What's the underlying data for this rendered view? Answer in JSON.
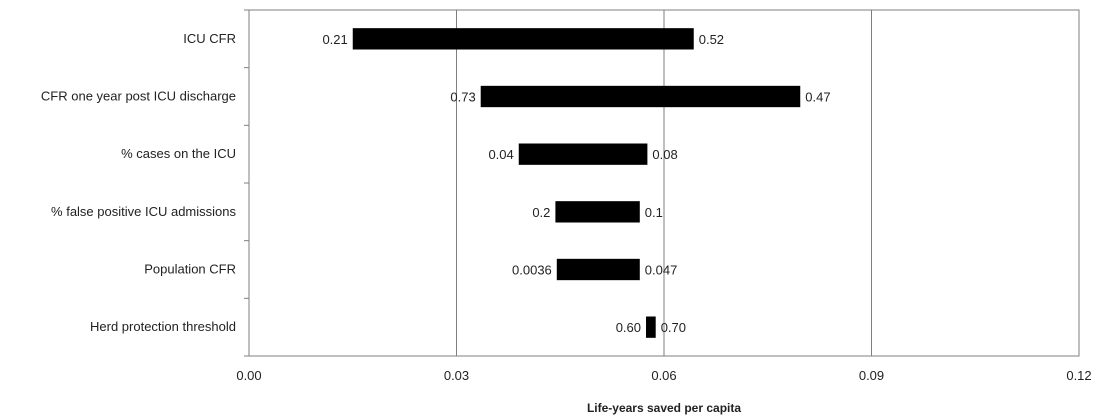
{
  "chart_data": {
    "type": "bar",
    "orientation": "horizontal",
    "subtype": "tornado",
    "title": "",
    "xlabel": "Life-years saved per capita",
    "ylabel": "",
    "xlim": [
      0,
      0.12
    ],
    "x_ticks": [
      0.0,
      0.03,
      0.06,
      0.09,
      0.12
    ],
    "x_tick_labels": [
      "0.00",
      "0.03",
      "0.06",
      "0.09",
      "0.12"
    ],
    "grid": "vertical",
    "legend": "none",
    "bar_color": "#000000",
    "categories": [
      "ICU CFR",
      "CFR one year post ICU discharge",
      "% cases on the ICU",
      "% false positive ICU admissions",
      "Population CFR",
      "Herd protection threshold"
    ],
    "low": [
      0.015,
      0.0335,
      0.039,
      0.0443,
      0.0445,
      0.0574
    ],
    "high": [
      0.0643,
      0.0797,
      0.0576,
      0.0565,
      0.0565,
      0.0588
    ],
    "low_labels": [
      "0.21",
      "0.73",
      "0.04",
      "0.2",
      "0.0036",
      "0.60"
    ],
    "high_labels": [
      "0.52",
      "0.47",
      "0.08",
      "0.1",
      "0.047",
      "0.70"
    ]
  }
}
